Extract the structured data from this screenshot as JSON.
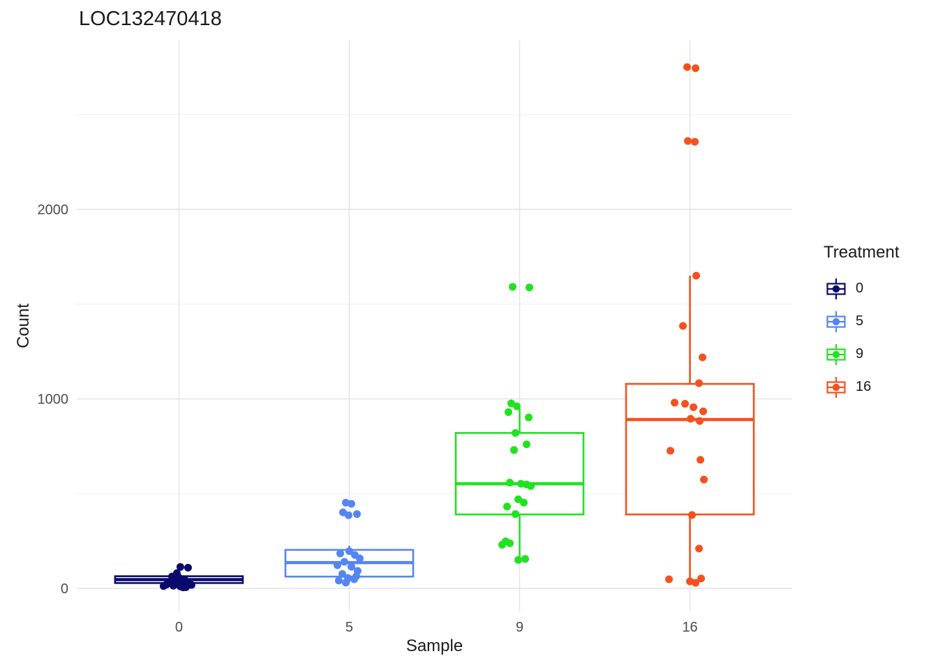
{
  "chart_data": {
    "type": "boxplot",
    "title": "LOC132470418",
    "xlabel": "Sample",
    "ylabel": "Count",
    "x_categories": [
      "0",
      "5",
      "9",
      "16"
    ],
    "y_ticks": [
      0,
      1000,
      2000
    ],
    "y_minor_ticks": [
      500,
      1500,
      2500
    ],
    "ylim": [
      0,
      2900
    ],
    "grid": true,
    "legend": {
      "title": "Treatment",
      "position": "right",
      "entries": [
        {
          "label": "0",
          "color": "#0A0A6E"
        },
        {
          "label": "5",
          "color": "#5585F2"
        },
        {
          "label": "9",
          "color": "#1FE31F"
        },
        {
          "label": "16",
          "color": "#F4511E"
        }
      ]
    },
    "groups": [
      {
        "label": "0",
        "color": "#0A0A6E",
        "box": {
          "q1": 28,
          "median": 46,
          "q3": 64,
          "whisker_low": 8,
          "whisker_high": 95
        },
        "points": [
          [
            -18,
            20
          ],
          [
            -8,
            14
          ],
          [
            2,
            10
          ],
          [
            10,
            6
          ],
          [
            -14,
            34
          ],
          [
            4,
            28
          ],
          [
            14,
            22
          ],
          [
            -4,
            40
          ],
          [
            -22,
            12
          ],
          [
            8,
            46
          ],
          [
            0,
            56
          ],
          [
            -10,
            62
          ],
          [
            2,
            113
          ],
          [
            13,
            109
          ],
          [
            -3,
            80
          ],
          [
            18,
            18
          ],
          [
            -16,
            26
          ],
          [
            6,
            5
          ]
        ]
      },
      {
        "label": "5",
        "color": "#5585F2",
        "box": {
          "q1": 62,
          "median": 136,
          "q3": 203,
          "whisker_low": 30,
          "whisker_high": 225
        },
        "points": [
          [
            -5,
            452
          ],
          [
            3,
            446
          ],
          [
            -9,
            401
          ],
          [
            11,
            392
          ],
          [
            -1,
            386
          ],
          [
            -13,
            184
          ],
          [
            0,
            196
          ],
          [
            8,
            176
          ],
          [
            -7,
            140
          ],
          [
            -17,
            122
          ],
          [
            3,
            114
          ],
          [
            12,
            92
          ],
          [
            -10,
            76
          ],
          [
            -2,
            55
          ],
          [
            7,
            48
          ],
          [
            -15,
            41
          ],
          [
            -5,
            30
          ],
          [
            15,
            158
          ],
          [
            10,
            64
          ]
        ]
      },
      {
        "label": "9",
        "color": "#1FE31F",
        "box": {
          "q1": 390,
          "median": 552,
          "q3": 820,
          "whisker_low": 155,
          "whisker_high": 950
        },
        "points": [
          [
            -10,
            1591
          ],
          [
            14,
            1588
          ],
          [
            -12,
            976
          ],
          [
            -4,
            961
          ],
          [
            -16,
            930
          ],
          [
            13,
            902
          ],
          [
            -6,
            820
          ],
          [
            10,
            760
          ],
          [
            -8,
            730
          ],
          [
            -14,
            558
          ],
          [
            2,
            552
          ],
          [
            10,
            548
          ],
          [
            16,
            540
          ],
          [
            -2,
            470
          ],
          [
            6,
            452
          ],
          [
            -18,
            432
          ],
          [
            -6,
            392
          ],
          [
            -20,
            248
          ],
          [
            -14,
            238
          ],
          [
            -25,
            230
          ],
          [
            8,
            155
          ],
          [
            -2,
            150
          ]
        ]
      },
      {
        "label": "16",
        "color": "#F4511E",
        "box": {
          "q1": 390,
          "median": 891,
          "q3": 1079,
          "whisker_low": 30,
          "whisker_high": 1650
        },
        "points": [
          [
            -4,
            2751
          ],
          [
            8,
            2745
          ],
          [
            -3,
            2361
          ],
          [
            7,
            2357
          ],
          [
            9,
            1650
          ],
          [
            -10,
            1385
          ],
          [
            18,
            1219
          ],
          [
            13,
            1083
          ],
          [
            -22,
            980
          ],
          [
            -7,
            974
          ],
          [
            5,
            956
          ],
          [
            19,
            934
          ],
          [
            1,
            895
          ],
          [
            14,
            883
          ],
          [
            -28,
            726
          ],
          [
            15,
            678
          ],
          [
            20,
            574
          ],
          [
            3,
            387
          ],
          [
            13,
            210
          ],
          [
            -30,
            48
          ],
          [
            0,
            37
          ],
          [
            8,
            29
          ],
          [
            16,
            52
          ]
        ]
      }
    ]
  },
  "style": {
    "grid_major": "#E3E3E3",
    "grid_minor": "#F1F1F1",
    "tick_text": "#4D4D4D",
    "title_text": "#1A1A1A",
    "box_fill": "#FFFFFF"
  }
}
